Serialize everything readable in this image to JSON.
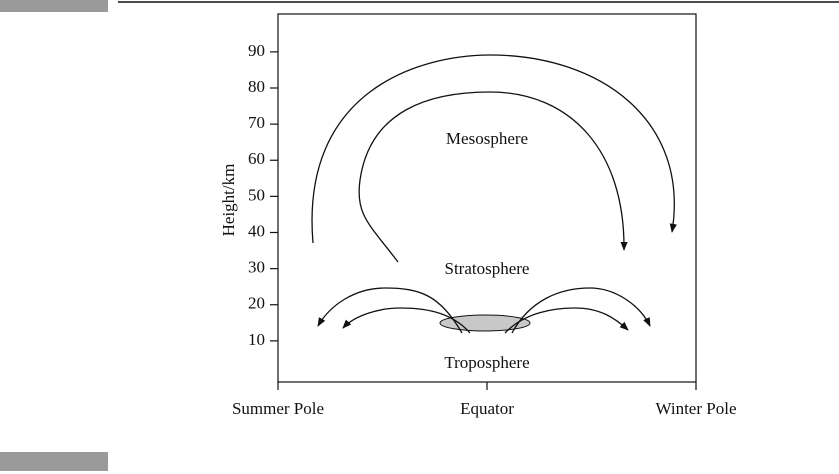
{
  "axis": {
    "label": "Height/km",
    "ticks": [
      10,
      20,
      30,
      40,
      50,
      60,
      70,
      80,
      90
    ],
    "categories": [
      "Summer Pole",
      "Equator",
      "Winter Pole"
    ]
  },
  "regions": [
    "Mesosphere",
    "Stratosphere",
    "Troposphere"
  ]
}
